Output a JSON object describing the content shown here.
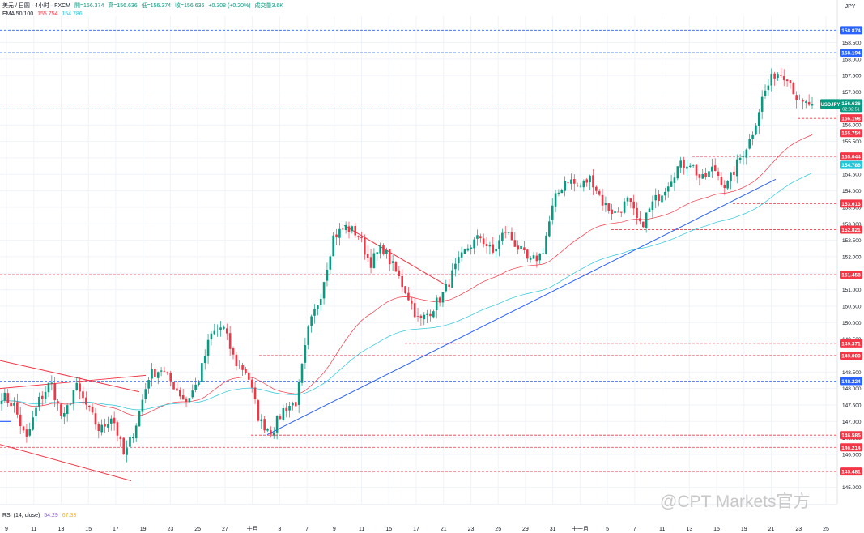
{
  "header": {
    "symbol": "美元 / 日圆 · 4小时 · FXCM",
    "open": "開=156.374",
    "high": "高=156.636",
    "low": "低=156.374",
    "close": "收=156.636",
    "change": "+0.308 (+0.20%)",
    "volume": "成交量3.6K",
    "ema_label": "EMA 50/100",
    "ema50_value": "155.754",
    "ema100_value": "154.786",
    "rsi_label": "RSI (14, close)",
    "rsi_value": "54.29",
    "rsi_ma_value": "67.33"
  },
  "watermark": "@CPT Markets官方",
  "colors": {
    "up": "#089981",
    "down": "#f23645",
    "ema50": "#f23645",
    "ema100": "#26c6da",
    "trendline_up": "#2962ff",
    "trendline_down": "#f23645",
    "level_red": "#f23645",
    "level_blue": "#2962ff",
    "grid": "#f0f3fa"
  },
  "chart_data": {
    "type": "candlestick",
    "symbol": "USDJPY",
    "currency_label": "JPY",
    "timeframe": "4小时",
    "ylim": [
      144.5,
      159.3
    ],
    "y_ticks": [
      "145.000",
      "145.500",
      "146.000",
      "146.500",
      "147.000",
      "147.500",
      "148.000",
      "148.500",
      "149.000",
      "149.500",
      "150.000",
      "150.500",
      "151.000",
      "151.500",
      "152.000",
      "152.500",
      "153.000",
      "153.500",
      "154.000",
      "154.500",
      "155.000",
      "155.500",
      "156.000",
      "156.500",
      "157.000",
      "157.500",
      "158.000",
      "158.500"
    ],
    "x_ticks": [
      "9",
      "11",
      "13",
      "15",
      "17",
      "19",
      "23",
      "25",
      "27",
      "十月",
      "3",
      "7",
      "9",
      "11",
      "15",
      "17",
      "21",
      "23",
      "25",
      "29",
      "31",
      "十一月",
      "5",
      "7",
      "11",
      "13",
      "15",
      "19",
      "21",
      "23",
      "25"
    ],
    "last_price": {
      "label": "USDJPY",
      "price": "156.636",
      "countdown": "02:32:51"
    },
    "price_labels": [
      {
        "price": "158.874",
        "color": "blue"
      },
      {
        "price": "158.194",
        "color": "blue"
      },
      {
        "price": "156.198",
        "color": "red"
      },
      {
        "price": "155.754",
        "color": "red"
      },
      {
        "price": "155.044",
        "color": "red"
      },
      {
        "price": "154.786",
        "color": "cyan"
      },
      {
        "price": "153.613",
        "color": "red"
      },
      {
        "price": "152.821",
        "color": "red"
      },
      {
        "price": "151.458",
        "color": "red"
      },
      {
        "price": "149.371",
        "color": "red"
      },
      {
        "price": "149.000",
        "color": "red"
      },
      {
        "price": "148.224",
        "color": "blue"
      },
      {
        "price": "146.585",
        "color": "red"
      },
      {
        "price": "146.214",
        "color": "red"
      },
      {
        "price": "145.481",
        "color": "red"
      }
    ],
    "series": [
      {
        "name": "USDJPY",
        "type": "candlestick",
        "close_path": [
          147.8,
          147.5,
          146.4,
          147.6,
          148.2,
          147.0,
          148.1,
          147.4,
          146.7,
          147.2,
          145.9,
          147.0,
          148.4,
          148.6,
          148.1,
          147.6,
          148.2,
          149.6,
          149.9,
          148.8,
          148.5,
          147.0,
          146.7,
          147.4,
          147.6,
          149.8,
          150.9,
          152.6,
          152.9,
          152.7,
          151.8,
          152.3,
          151.6,
          150.9,
          150.0,
          150.4,
          150.9,
          151.7,
          152.3,
          152.6,
          152.1,
          152.8,
          152.3,
          151.8,
          152.1,
          153.7,
          154.4,
          154.1,
          154.4,
          153.6,
          153.3,
          153.7,
          152.9,
          153.6,
          154.1,
          154.7,
          154.9,
          154.3,
          154.7,
          154.1,
          154.9,
          155.6,
          156.9,
          157.6,
          157.5,
          156.6,
          156.64
        ]
      },
      {
        "name": "EMA 50",
        "values_start": 147.8,
        "values_end": 155.754
      },
      {
        "name": "EMA 100",
        "values_start": 147.7,
        "values_end": 154.786
      }
    ],
    "trendlines": [
      {
        "color": "blue",
        "from": [
          "3",
          146.6
        ],
        "to": [
          "21",
          154.35
        ]
      },
      {
        "color": "red",
        "from": [
          "9",
          152.9
        ],
        "to": [
          "19",
          150.9
        ]
      },
      {
        "color": "red",
        "from": [
          "9",
          148.8
        ],
        "to": [
          "19",
          148.1
        ]
      },
      {
        "color": "red",
        "from": [
          "9",
          146.3
        ],
        "to": [
          "19",
          145.2
        ]
      }
    ],
    "grid": true
  }
}
